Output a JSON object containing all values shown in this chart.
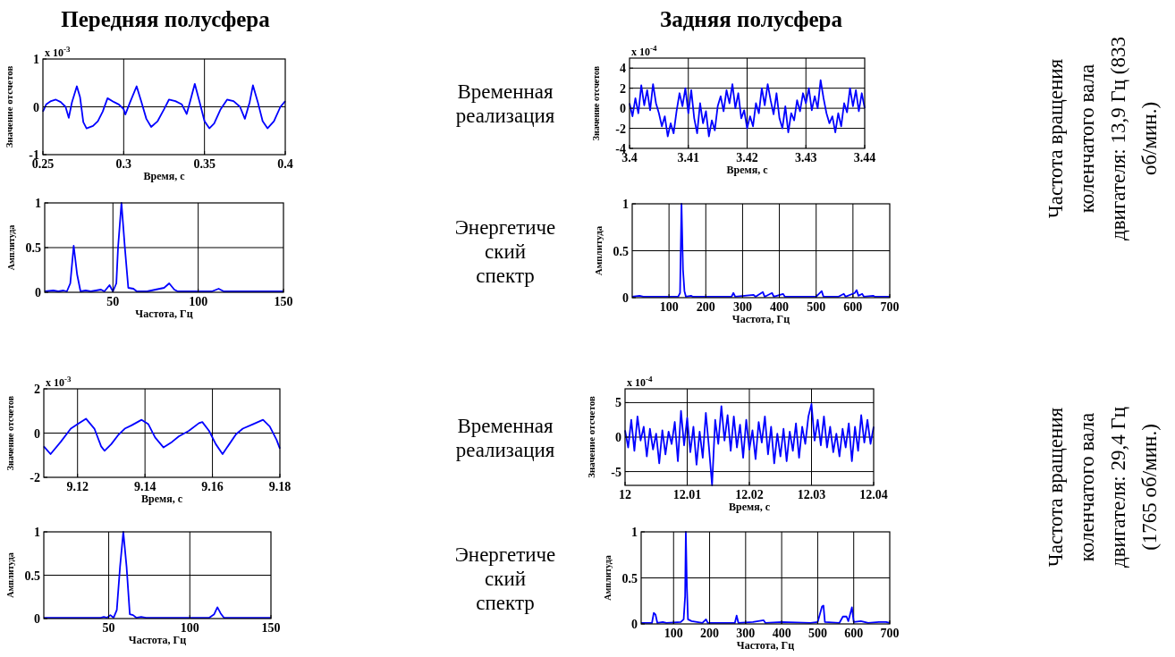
{
  "chart_data": [
    {
      "type": "line",
      "title": "Передняя полусфера",
      "annotations": [
        "x 10$^{-3}$"
      ],
      "xlabel": "Время, с",
      "ylabel": "Значение отсчетов",
      "xlim": [
        0.25,
        0.4
      ],
      "xticks": [
        0.25,
        0.3,
        0.35,
        0.4
      ],
      "ylim": [
        -1,
        1
      ],
      "yticks": [
        -1,
        0,
        1
      ],
      "grid": true,
      "x": [
        0.25,
        0.252,
        0.255,
        0.258,
        0.261,
        0.264,
        0.266,
        0.268,
        0.271,
        0.273,
        0.275,
        0.277,
        0.281,
        0.284,
        0.287,
        0.29,
        0.294,
        0.297,
        0.3,
        0.301,
        0.304,
        0.308,
        0.311,
        0.314,
        0.317,
        0.321,
        0.325,
        0.328,
        0.332,
        0.336,
        0.339,
        0.341,
        0.344,
        0.347,
        0.35,
        0.353,
        0.356,
        0.36,
        0.364,
        0.368,
        0.372,
        0.375,
        0.378,
        0.38,
        0.383,
        0.386,
        0.389,
        0.393,
        0.397,
        0.4
      ],
      "series": [
        {
          "color": "#0000ff",
          "values": [
            -0.1,
            0.05,
            0.12,
            0.15,
            0.1,
            0.0,
            -0.23,
            0.1,
            0.43,
            0.2,
            -0.32,
            -0.45,
            -0.4,
            -0.3,
            -0.1,
            0.18,
            0.1,
            0.05,
            -0.05,
            -0.16,
            0.1,
            0.43,
            0.1,
            -0.25,
            -0.42,
            -0.3,
            -0.05,
            0.15,
            0.12,
            0.05,
            -0.15,
            0.1,
            0.48,
            0.1,
            -0.3,
            -0.45,
            -0.35,
            -0.05,
            0.15,
            0.12,
            0.0,
            -0.25,
            0.1,
            0.45,
            0.1,
            -0.3,
            -0.45,
            -0.3,
            0.0,
            0.12
          ]
        }
      ]
    },
    {
      "type": "line",
      "title": "Задняя полусфера",
      "subtitle": "Временная реализация",
      "annotations": [
        "x 10$^{-4}$"
      ],
      "xlabel": "Время, с",
      "ylabel": "Значение отсчетов",
      "xlim": [
        3.4,
        3.44
      ],
      "xticks": [
        3.4,
        3.41,
        3.42,
        3.43,
        3.44
      ],
      "ylim": [
        -4,
        5
      ],
      "yticks": [
        -4,
        -2,
        0,
        2,
        4
      ],
      "grid": true,
      "x": [
        3.4,
        3.4005,
        3.401,
        3.4015,
        3.402,
        3.4025,
        3.403,
        3.4035,
        3.404,
        3.4045,
        3.405,
        3.4055,
        3.406,
        3.4065,
        3.407,
        3.4075,
        3.408,
        3.4085,
        3.409,
        3.4095,
        3.41,
        3.4105,
        3.411,
        3.4115,
        3.412,
        3.4125,
        3.413,
        3.4135,
        3.414,
        3.4145,
        3.415,
        3.4155,
        3.416,
        3.4165,
        3.417,
        3.4175,
        3.418,
        3.4185,
        3.419,
        3.4195,
        3.42,
        3.4205,
        3.421,
        3.4215,
        3.422,
        3.4225,
        3.423,
        3.4235,
        3.424,
        3.4245,
        3.425,
        3.4255,
        3.426,
        3.4265,
        3.427,
        3.4275,
        3.428,
        3.4285,
        3.429,
        3.4295,
        3.43,
        3.4305,
        3.431,
        3.4315,
        3.432,
        3.4325,
        3.433,
        3.4335,
        3.434,
        3.4345,
        3.435,
        3.4355,
        3.436,
        3.4365,
        3.437,
        3.4375,
        3.438,
        3.4385,
        3.439,
        3.4395,
        3.44
      ],
      "series": [
        {
          "color": "#0000ff",
          "values": [
            0.5,
            -0.8,
            1.0,
            -0.5,
            2.3,
            0.3,
            1.8,
            -0.2,
            2.4,
            0.5,
            -0.5,
            -1.8,
            -0.8,
            -2.8,
            -1.5,
            -2.5,
            -0.3,
            1.5,
            0.2,
            2.0,
            -0.5,
            1.8,
            -1.0,
            -2.5,
            0.5,
            -1.5,
            -0.3,
            -2.8,
            -1.2,
            -2.2,
            0.2,
            1.2,
            -0.3,
            1.8,
            0.5,
            2.4,
            0.0,
            1.5,
            -1.0,
            -0.2,
            -2.0,
            -0.8,
            -1.8,
            0.5,
            -0.5,
            2.0,
            0.3,
            2.4,
            0.8,
            -0.6,
            1.5,
            -1.0,
            -2.0,
            0.2,
            -2.4,
            -0.5,
            -1.2,
            0.8,
            -0.3,
            1.5,
            0.5,
            2.0,
            -0.2,
            1.2,
            0.0,
            2.8,
            1.0,
            -0.5,
            -1.5,
            -0.8,
            -2.4,
            -0.5,
            -1.8,
            0.5,
            -0.4,
            2.0,
            0.2,
            1.8,
            -0.3,
            1.5,
            0.0
          ]
        }
      ]
    },
    {
      "type": "line",
      "xlabel": "Частота, Гц",
      "ylabel": "Амплитуда",
      "xlim": [
        10,
        150
      ],
      "xticks": [
        50,
        100,
        150
      ],
      "ylim": [
        0,
        1
      ],
      "yticks": [
        0,
        0.5,
        1
      ],
      "grid": true,
      "x": [
        10,
        15,
        18,
        21,
        23,
        25,
        27,
        29,
        31,
        34,
        37,
        43,
        45,
        48,
        50,
        52,
        53,
        55,
        57,
        59,
        62,
        64,
        70,
        80,
        83,
        86,
        88,
        100,
        108,
        112,
        115,
        150
      ],
      "series": [
        {
          "color": "#0000ff",
          "values": [
            0.01,
            0.02,
            0.01,
            0.02,
            0.01,
            0.1,
            0.52,
            0.2,
            0.01,
            0.02,
            0.01,
            0.03,
            0.01,
            0.08,
            0.01,
            0.1,
            0.5,
            1.0,
            0.5,
            0.05,
            0.04,
            0.01,
            0.01,
            0.05,
            0.1,
            0.03,
            0.01,
            0.01,
            0.01,
            0.04,
            0.01,
            0.01
          ]
        }
      ]
    },
    {
      "type": "line",
      "subtitle": "Энергетический спектр",
      "xlabel": "Частота, Гц",
      "ylabel": "Амплитуда",
      "xlim": [
        0,
        700
      ],
      "xticks": [
        100,
        200,
        300,
        400,
        500,
        600,
        700
      ],
      "ylim": [
        0,
        1
      ],
      "yticks": [
        0,
        0.5,
        1
      ],
      "grid": true,
      "x": [
        0,
        20,
        30,
        125,
        130,
        134,
        138,
        142,
        146,
        160,
        165,
        200,
        270,
        275,
        280,
        330,
        335,
        355,
        360,
        380,
        385,
        410,
        415,
        460,
        500,
        515,
        520,
        560,
        575,
        580,
        605,
        610,
        615,
        625,
        630,
        655,
        660,
        700
      ],
      "series": [
        {
          "color": "#0000ff",
          "values": [
            0.01,
            0.02,
            0.01,
            0.01,
            0.05,
            1.0,
            0.3,
            0.07,
            0.01,
            0.02,
            0.01,
            0.01,
            0.01,
            0.05,
            0.01,
            0.03,
            0.01,
            0.06,
            0.01,
            0.05,
            0.01,
            0.04,
            0.01,
            0.01,
            0.01,
            0.07,
            0.01,
            0.01,
            0.04,
            0.01,
            0.05,
            0.08,
            0.02,
            0.04,
            0.01,
            0.02,
            0.01,
            0.01
          ]
        }
      ]
    },
    {
      "type": "line",
      "annotations": [
        "x 10$^{-3}$"
      ],
      "xlabel": "Время, с",
      "ylabel": "Значение отсчетов",
      "xlim": [
        9.11,
        9.18
      ],
      "xticks": [
        9.12,
        9.14,
        9.16,
        9.18
      ],
      "ylim": [
        -2,
        2
      ],
      "yticks": [
        -2,
        0,
        2
      ],
      "grid": true,
      "x": [
        9.11,
        9.112,
        9.115,
        9.118,
        9.12,
        9.1225,
        9.125,
        9.127,
        9.128,
        9.13,
        9.132,
        9.134,
        9.136,
        9.139,
        9.141,
        9.143,
        9.1455,
        9.148,
        9.15,
        9.153,
        9.156,
        9.157,
        9.159,
        9.161,
        9.163,
        9.165,
        9.167,
        9.169,
        9.172,
        9.175,
        9.177,
        9.179,
        9.18
      ],
      "series": [
        {
          "color": "#0000ff",
          "values": [
            -0.6,
            -0.95,
            -0.4,
            0.2,
            0.4,
            0.65,
            0.2,
            -0.6,
            -0.8,
            -0.5,
            -0.1,
            0.2,
            0.35,
            0.6,
            0.4,
            -0.2,
            -0.65,
            -0.4,
            -0.15,
            0.1,
            0.45,
            0.5,
            0.1,
            -0.5,
            -0.95,
            -0.5,
            -0.05,
            0.2,
            0.4,
            0.6,
            0.3,
            -0.3,
            -0.7
          ]
        }
      ]
    },
    {
      "type": "line",
      "subtitle": "Временная реализация",
      "annotations": [
        "x 10$^{-4}$"
      ],
      "xlabel": "Время, с",
      "ylabel": "Значение отсчетов",
      "xlim": [
        12,
        12.04
      ],
      "xticks": [
        12,
        12.01,
        12.02,
        12.03,
        12.04
      ],
      "ylim": [
        -7,
        7
      ],
      "yticks": [
        -5,
        0,
        5
      ],
      "grid": true,
      "x": [
        12,
        12.0005,
        12.001,
        12.0015,
        12.002,
        12.0025,
        12.003,
        12.0035,
        12.004,
        12.0045,
        12.005,
        12.0055,
        12.006,
        12.0065,
        12.007,
        12.0075,
        12.008,
        12.0085,
        12.009,
        12.0095,
        12.01,
        12.0105,
        12.011,
        12.0115,
        12.012,
        12.0125,
        12.013,
        12.0135,
        12.014,
        12.0145,
        12.015,
        12.0155,
        12.016,
        12.0165,
        12.017,
        12.0175,
        12.018,
        12.0185,
        12.019,
        12.0195,
        12.02,
        12.0205,
        12.021,
        12.0215,
        12.022,
        12.0225,
        12.023,
        12.0235,
        12.024,
        12.0245,
        12.025,
        12.0255,
        12.026,
        12.0265,
        12.027,
        12.0275,
        12.028,
        12.0285,
        12.029,
        12.0295,
        12.03,
        12.0305,
        12.031,
        12.0315,
        12.032,
        12.0325,
        12.033,
        12.0335,
        12.034,
        12.0345,
        12.035,
        12.0355,
        12.036,
        12.0365,
        12.037,
        12.0375,
        12.038,
        12.0385,
        12.039,
        12.0395,
        12.04
      ],
      "series": [
        {
          "color": "#0000ff",
          "values": [
            1,
            -1.5,
            2.5,
            -2,
            3,
            -0.5,
            1.5,
            -2.8,
            1.2,
            -1.8,
            0.5,
            -3.8,
            1,
            -2.5,
            0.8,
            -1,
            2.2,
            -3.5,
            3.8,
            -1.2,
            2.8,
            -2.2,
            1.5,
            -4,
            0.8,
            -3,
            3.5,
            -1.5,
            -7,
            2.5,
            -1,
            4.5,
            -0.5,
            3.2,
            -2,
            3,
            -1.5,
            1.8,
            -3,
            2.5,
            -1.8,
            1,
            -3.2,
            2.2,
            -0.8,
            3,
            -2.5,
            1.5,
            -3.8,
            0.5,
            -2.8,
            1.2,
            -3.5,
            0.8,
            -2,
            2,
            -3,
            1.5,
            -1,
            3,
            4.8,
            -0.5,
            2.5,
            -1.2,
            3,
            -1.5,
            1.5,
            -2.2,
            0.5,
            -2.8,
            1.2,
            -1.5,
            2,
            -3.5,
            1.5,
            -2,
            3.2,
            -0.8,
            2.5,
            -1,
            1.5
          ]
        }
      ]
    },
    {
      "type": "line",
      "xlabel": "Частота, Гц",
      "ylabel": "Амплитуда",
      "xlim": [
        10,
        150
      ],
      "xticks": [
        50,
        100,
        150
      ],
      "ylim": [
        0,
        1
      ],
      "yticks": [
        0,
        0.5,
        1
      ],
      "grid": true,
      "x": [
        10,
        20,
        22,
        45,
        47,
        49,
        51,
        53,
        55,
        57,
        59,
        61,
        63,
        65,
        67,
        70,
        73,
        112,
        115,
        117,
        119,
        121,
        150
      ],
      "series": [
        {
          "color": "#0000ff",
          "values": [
            0.01,
            0.01,
            0.01,
            0.01,
            0.02,
            0.01,
            0.04,
            0.01,
            0.1,
            0.6,
            1.0,
            0.6,
            0.05,
            0.04,
            0.01,
            0.02,
            0.01,
            0.01,
            0.05,
            0.13,
            0.06,
            0.01,
            0.01
          ]
        }
      ]
    },
    {
      "type": "line",
      "subtitle": "Энергетический спектр",
      "xlabel": "Частота, Гц",
      "ylabel": "Амплитуда",
      "xlim": [
        10,
        700
      ],
      "xticks": [
        100,
        200,
        300,
        400,
        500,
        600,
        700
      ],
      "ylim": [
        0,
        1
      ],
      "yticks": [
        0,
        0.5,
        1
      ],
      "grid": true,
      "x": [
        10,
        40,
        45,
        50,
        55,
        70,
        80,
        120,
        128,
        132,
        134,
        137,
        140,
        150,
        180,
        190,
        195,
        270,
        275,
        280,
        320,
        350,
        355,
        400,
        480,
        500,
        512,
        516,
        520,
        560,
        570,
        580,
        585,
        595,
        600,
        620,
        640,
        670,
        690,
        700
      ],
      "series": [
        {
          "color": "#0000ff",
          "values": [
            0.01,
            0.01,
            0.12,
            0.1,
            0.01,
            0.02,
            0.01,
            0.02,
            0.05,
            0.3,
            1.0,
            0.4,
            0.05,
            0.03,
            0.01,
            0.05,
            0.01,
            0.01,
            0.09,
            0.01,
            0.02,
            0.04,
            0.01,
            0.02,
            0.01,
            0.02,
            0.19,
            0.2,
            0.02,
            0.01,
            0.08,
            0.08,
            0.03,
            0.18,
            0.02,
            0.03,
            0.01,
            0.02,
            0.02,
            0.01
          ]
        }
      ]
    },
    {
      "type": "other",
      "annotations": [
        "Частота вращения",
        "коленчатого вала",
        "двигателя: 13,9 Гц (833",
        "об/мин.)"
      ]
    },
    {
      "type": "other",
      "annotations": [
        "Частота вращения",
        "коленчатого вала",
        "двигателя: 29,4 Гц",
        "(1765 об/мин.)"
      ]
    }
  ]
}
